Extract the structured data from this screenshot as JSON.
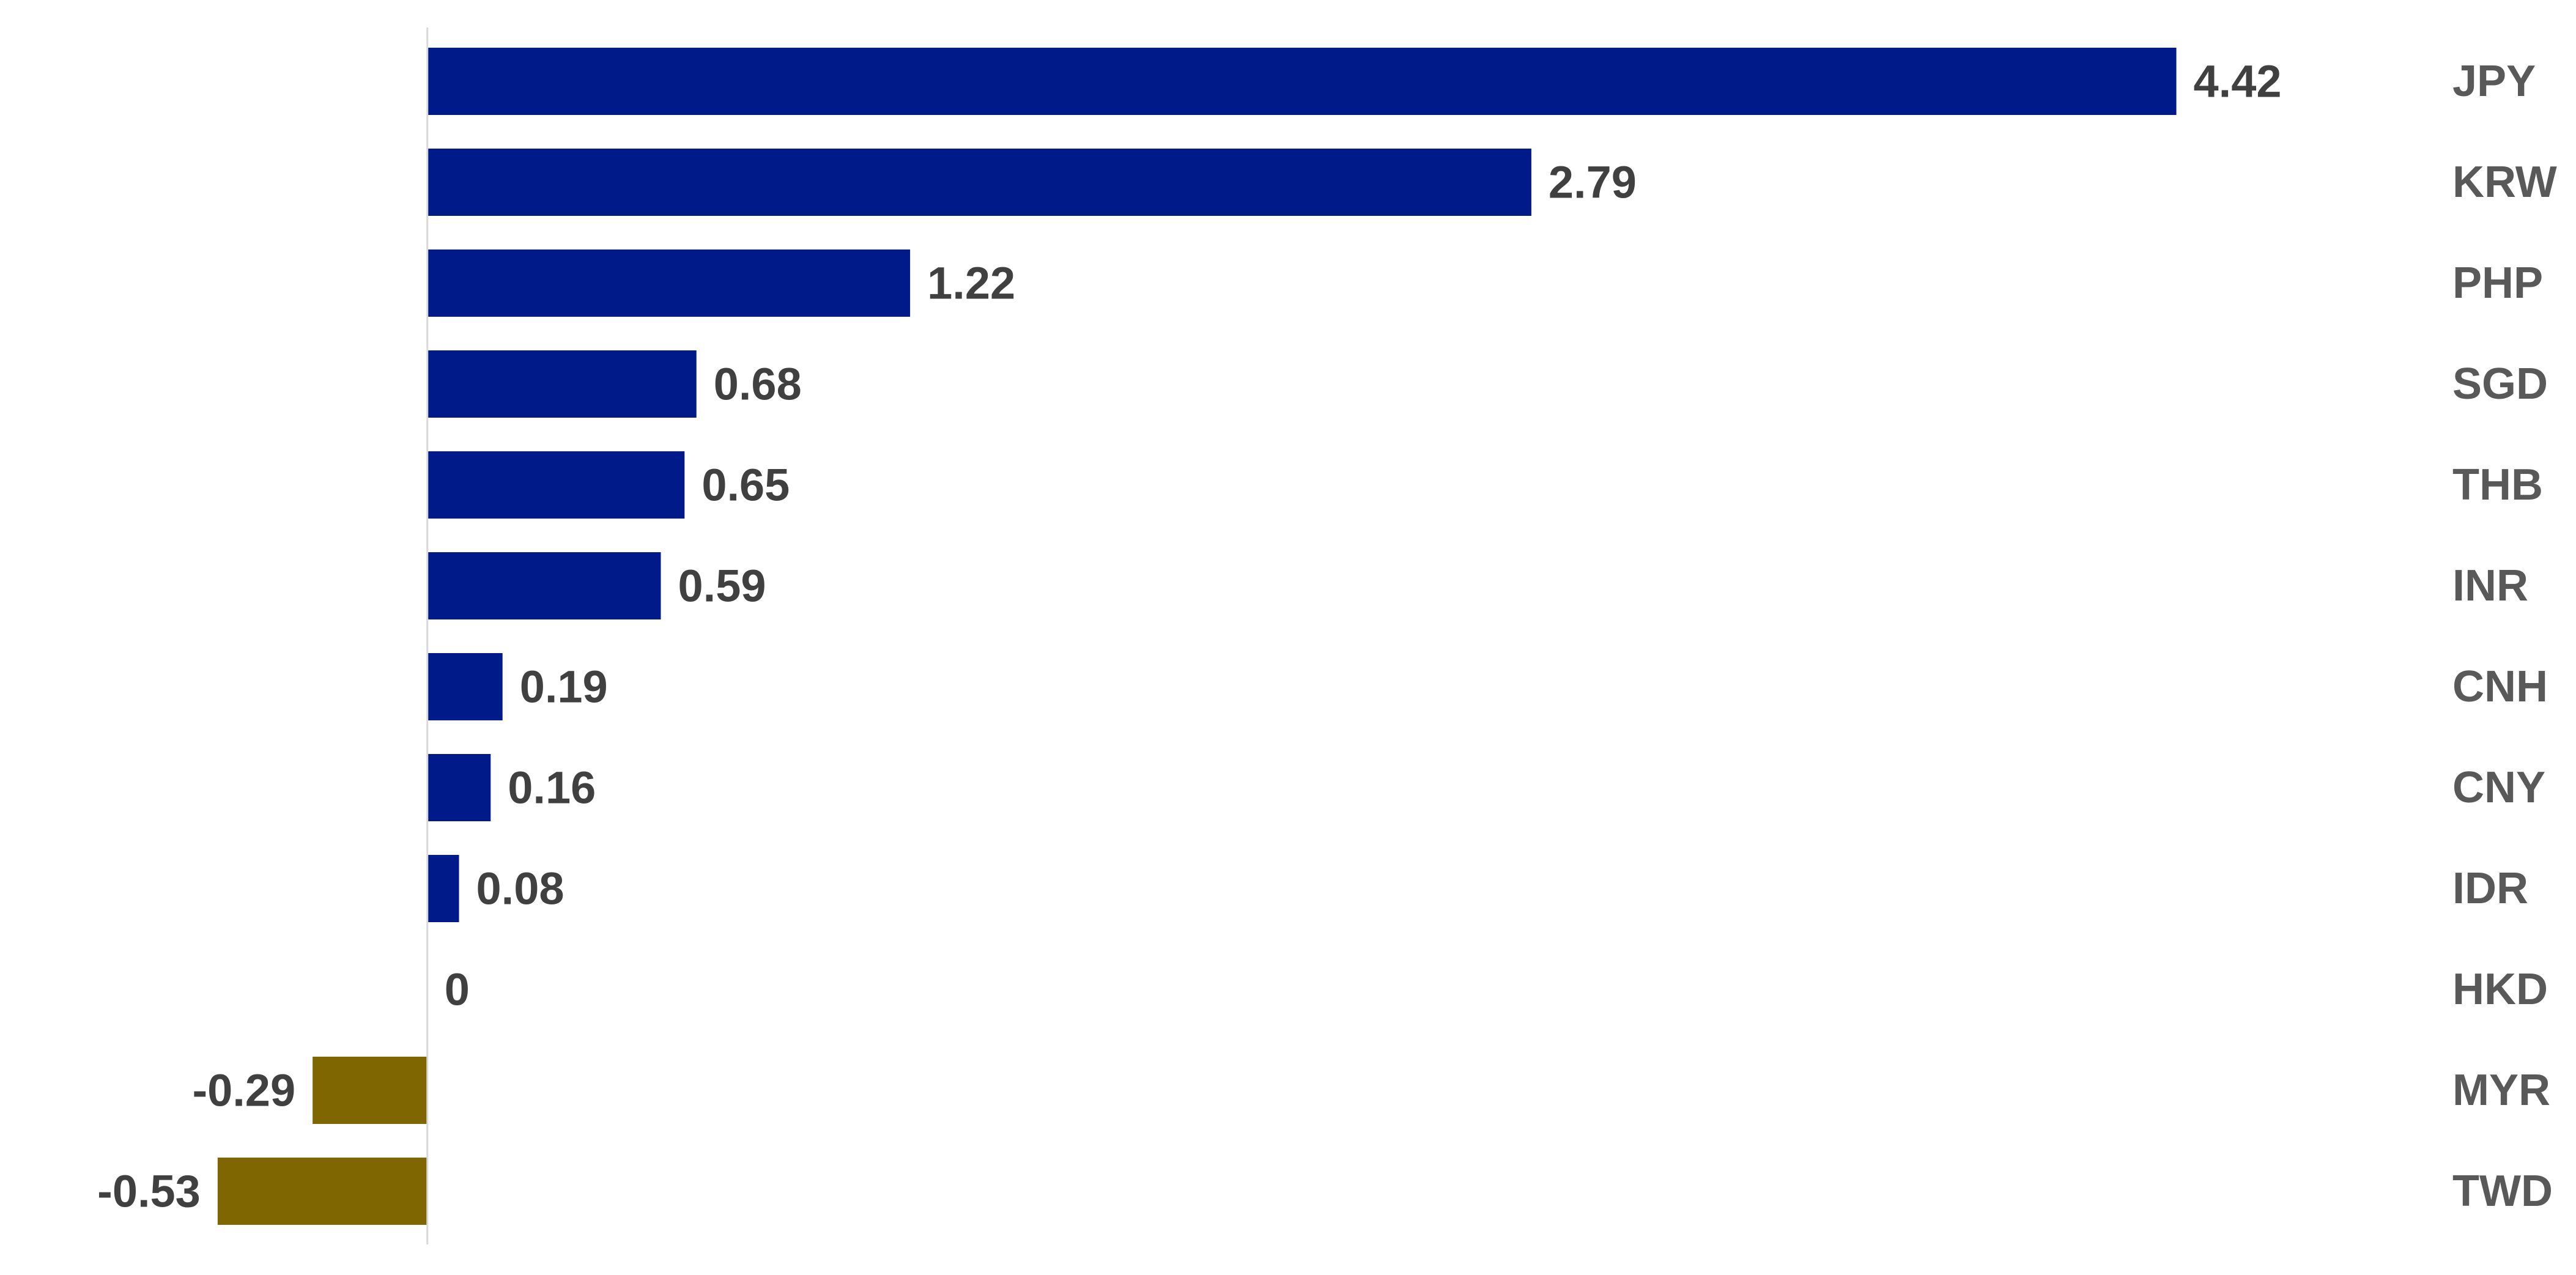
{
  "chart_data": {
    "type": "bar",
    "orientation": "horizontal",
    "categories": [
      "JPY",
      "KRW",
      "PHP",
      "SGD",
      "THB",
      "INR",
      "CNH",
      "CNY",
      "IDR",
      "HKD",
      "MYR",
      "TWD"
    ],
    "values": [
      4.42,
      2.79,
      1.22,
      0.68,
      0.65,
      0.59,
      0.19,
      0.16,
      0.08,
      0,
      -0.29,
      -0.53
    ],
    "value_labels": [
      "4.42",
      "2.79",
      "1.22",
      "0.68",
      "0.65",
      "0.59",
      "0.19",
      "0.16",
      "0.08",
      "0",
      "-0.29",
      "-0.53"
    ],
    "title": "",
    "xlabel": "",
    "ylabel": "",
    "xlim": [
      -1.08,
      5.43
    ],
    "grid": false,
    "legend": "none",
    "category_label_position": "right",
    "colors": {
      "positive": "#001A8A",
      "negative": "#806600",
      "axis": "#D9D9D9",
      "value_text": "#404040",
      "category_text": "#595959"
    }
  }
}
